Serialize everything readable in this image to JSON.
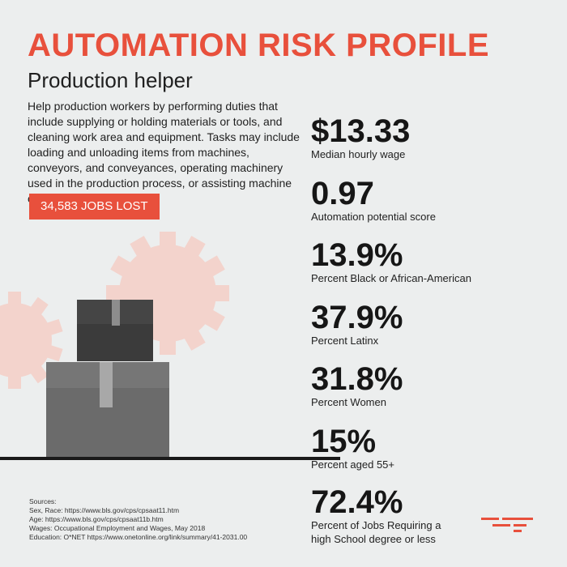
{
  "header": {
    "title": "AUTOMATION RISK PROFILE",
    "subtitle": "Production helper"
  },
  "description": "Help production workers by performing duties that include supplying or holding materials or tools, and cleaning work area and equipment. Tasks may include loading and unloading items from machines, conveyors, and conveyances, operating machinery used in the production process, or assisting machine operators.",
  "jobs_lost": "34,583 JOBS LOST",
  "stats": [
    {
      "value": "$13.33",
      "label": "Median hourly wage"
    },
    {
      "value": "0.97",
      "label": "Automation potential score"
    },
    {
      "value": "13.9%",
      "label": "Percent Black or African-American"
    },
    {
      "value": "37.9%",
      "label": "Percent Latinx"
    },
    {
      "value": "31.8%",
      "label": "Percent Women"
    },
    {
      "value": "15%",
      "label": "Percent aged 55+"
    },
    {
      "value": "72.4%",
      "label": "Percent of Jobs Requiring a high School degree or less"
    }
  ],
  "sources": {
    "heading": "Sources:",
    "lines": [
      "Sex, Race: https://www.bls.gov/cps/cpsaat11.htm",
      "Age: https://www.bls.gov/cps/cpsaat11b.htm",
      "Wages: Occupational Employment and Wages, May 2018",
      "Education: O*NET https://www.onetonline.org/link/summary/41-2031.00"
    ]
  },
  "icons": {
    "illustration": "stacked-boxes-with-gears",
    "logo": "brand-logo-icon"
  },
  "colors": {
    "accent": "#e8503c",
    "background": "#eceeee",
    "gear": "#f3d3cc",
    "box_light": "#6b6b6b",
    "box_dark": "#3b3b3b"
  }
}
